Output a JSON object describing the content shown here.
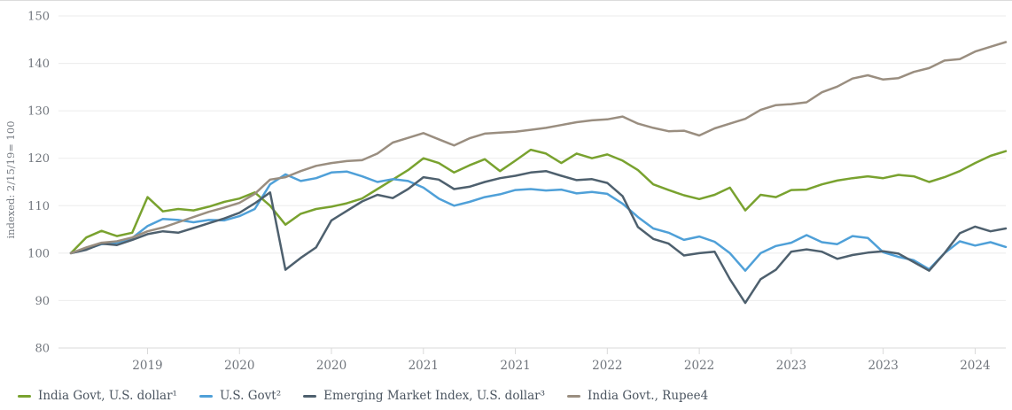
{
  "chart_data": {
    "type": "line",
    "title": "",
    "ylabel": "indexed: 2/15/19= 100",
    "ylim": [
      80,
      150
    ],
    "y_ticks": [
      150,
      140,
      130,
      120,
      110,
      100,
      90,
      80
    ],
    "grid": "horizontal",
    "legend_position": "bottom",
    "x_range": [
      "2019-02",
      "2024-03"
    ],
    "x_freq": "monthly",
    "x_tick_labels": [
      "2019",
      "2020",
      "2020",
      "2021",
      "2021",
      "2022",
      "2022",
      "2023",
      "2023",
      "2024"
    ],
    "x_tick_month_indices": [
      5,
      11,
      17,
      23,
      29,
      35,
      41,
      47,
      53,
      59
    ],
    "colors": {
      "grid": "#ebebeb",
      "axis_line": "#d9d9d9",
      "tick_text": "#71767d",
      "legend_text": "#4b5560"
    },
    "series": [
      {
        "name": "India Govt, U.S. dollar¹",
        "color": "#79A22F",
        "values": [
          100,
          103.3,
          104.7,
          103.6,
          104.3,
          111.8,
          108.8,
          109.3,
          109,
          109.8,
          110.8,
          111.5,
          112.8,
          110,
          106,
          108.3,
          109.3,
          109.8,
          110.5,
          111.5,
          113.5,
          115.5,
          117.5,
          120,
          119,
          117,
          118.5,
          119.8,
          117.3,
          119.5,
          121.8,
          121,
          119,
          121,
          120,
          120.8,
          119.5,
          117.5,
          114.5,
          113.3,
          112.2,
          111.4,
          112.3,
          113.8,
          109,
          112.3,
          111.8,
          113.3,
          113.4,
          114.5,
          115.3,
          115.8,
          116.2,
          115.8,
          116.5,
          116.2,
          115,
          116,
          117.3,
          119,
          120.5,
          121.5
        ]
      },
      {
        "name": "U.S. Govt²",
        "color": "#4FA0D8",
        "values": [
          100,
          100.8,
          101.9,
          102.2,
          103.2,
          105.7,
          107.2,
          107,
          106.5,
          107,
          106.9,
          107.8,
          109.3,
          114.5,
          116.6,
          115.2,
          115.8,
          117,
          117.2,
          116.2,
          115,
          115.6,
          115.2,
          113.8,
          111.5,
          110,
          110.8,
          111.8,
          112.4,
          113.3,
          113.5,
          113.2,
          113.4,
          112.6,
          112.9,
          112.5,
          110.4,
          107.6,
          105.2,
          104.3,
          102.8,
          103.5,
          102.4,
          100,
          96.3,
          100,
          101.5,
          102.2,
          103.8,
          102.3,
          101.9,
          103.6,
          103.2,
          100.2,
          99.2,
          98.5,
          96.6,
          100,
          102.5,
          101.6,
          102.3,
          101.3
        ]
      },
      {
        "name": "Emerging Market Index, U.S. dollar³",
        "color": "#4E606E",
        "values": [
          100,
          100.7,
          102,
          101.7,
          102.8,
          104,
          104.6,
          104.3,
          105.3,
          106.3,
          107.3,
          108.5,
          110.5,
          112.8,
          96.5,
          99,
          101.2,
          106.9,
          108.9,
          110.9,
          112.3,
          111.6,
          113.5,
          116,
          115.5,
          113.5,
          114,
          115,
          115.8,
          116.3,
          117,
          117.3,
          116.3,
          115.4,
          115.6,
          114.8,
          112,
          105.5,
          103,
          102,
          99.5,
          100,
          100.3,
          94.5,
          89.5,
          94.5,
          96.5,
          100.3,
          100.8,
          100.3,
          98.8,
          99.6,
          100.1,
          100.4,
          99.9,
          98.1,
          96.3,
          100,
          104.2,
          105.6,
          104.6,
          105.2
        ]
      },
      {
        "name": "India Govt., Rupee4",
        "color": "#9A8E80",
        "values": [
          100,
          101.2,
          102.2,
          102.5,
          103.3,
          104.6,
          105.4,
          106.5,
          107.6,
          108.7,
          109.6,
          110.6,
          112.5,
          115.5,
          116,
          117.3,
          118.4,
          119,
          119.4,
          119.6,
          121,
          123.3,
          124.3,
          125.3,
          124,
          122.7,
          124.2,
          125.2,
          125.4,
          125.6,
          126,
          126.4,
          127,
          127.6,
          128,
          128.2,
          128.8,
          127.3,
          126.4,
          125.7,
          125.8,
          124.8,
          126.3,
          127.3,
          128.3,
          130.2,
          131.2,
          131.4,
          131.8,
          133.9,
          135.1,
          136.8,
          137.5,
          136.6,
          136.9,
          138.2,
          139,
          140.6,
          140.9,
          142.5,
          143.5,
          144.5
        ]
      }
    ]
  }
}
